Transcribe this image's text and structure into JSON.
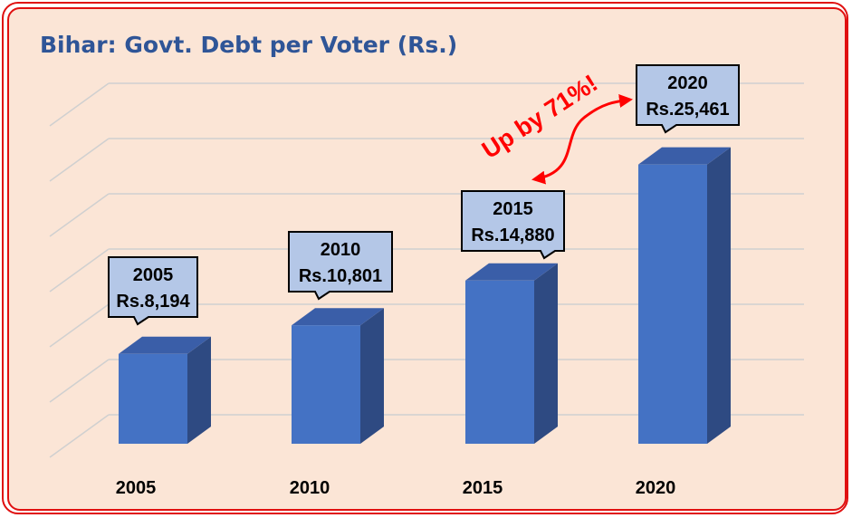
{
  "chart_data": {
    "type": "bar",
    "title": "Bihar: Govt. Debt per Voter (Rs.)",
    "categories": [
      "2005",
      "2010",
      "2015",
      "2020"
    ],
    "values": [
      8194,
      10801,
      14880,
      25461
    ],
    "data_labels": [
      {
        "year": "2005",
        "value_text": "Rs.8,194"
      },
      {
        "year": "2010",
        "value_text": "Rs.10,801"
      },
      {
        "year": "2015",
        "value_text": "Rs.14,880"
      },
      {
        "year": "2020",
        "value_text": "Rs.25,461"
      }
    ],
    "annotation": "Up by 71%!",
    "grid": true,
    "colors": {
      "bar_front": "#4472c4",
      "bar_side": "#2e4a82",
      "bar_top": "#3a5ea8",
      "label_fill": "#b4c7e7",
      "annotation": "#ff0000",
      "title": "#2f5597",
      "frame": "#e01010",
      "background": "#fbe5d6"
    }
  }
}
